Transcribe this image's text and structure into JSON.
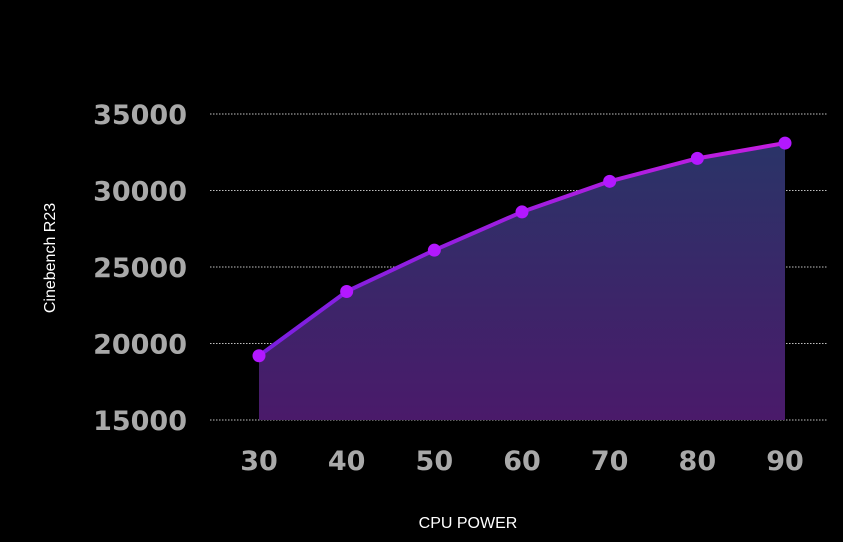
{
  "chart_data": {
    "type": "area",
    "xlabel": "CPU POWER",
    "ylabel": "Cinebench R23",
    "categories": [
      30,
      40,
      50,
      60,
      70,
      80,
      90
    ],
    "values": [
      19200,
      23400,
      26100,
      28600,
      30600,
      32100,
      33100
    ],
    "ylim": [
      15000,
      35000
    ],
    "yticks": [
      15000,
      20000,
      25000,
      30000,
      35000
    ],
    "grid": true,
    "colors": {
      "line_start": "#7a1fe0",
      "line_end": "#c51ee0",
      "marker": "#b318ff",
      "fill_top": "#2a3468",
      "fill_bottom": "#4a1a6a",
      "tick_label": "#a9a9a9",
      "axis_title": "#ffffff",
      "background": "#000000"
    }
  }
}
